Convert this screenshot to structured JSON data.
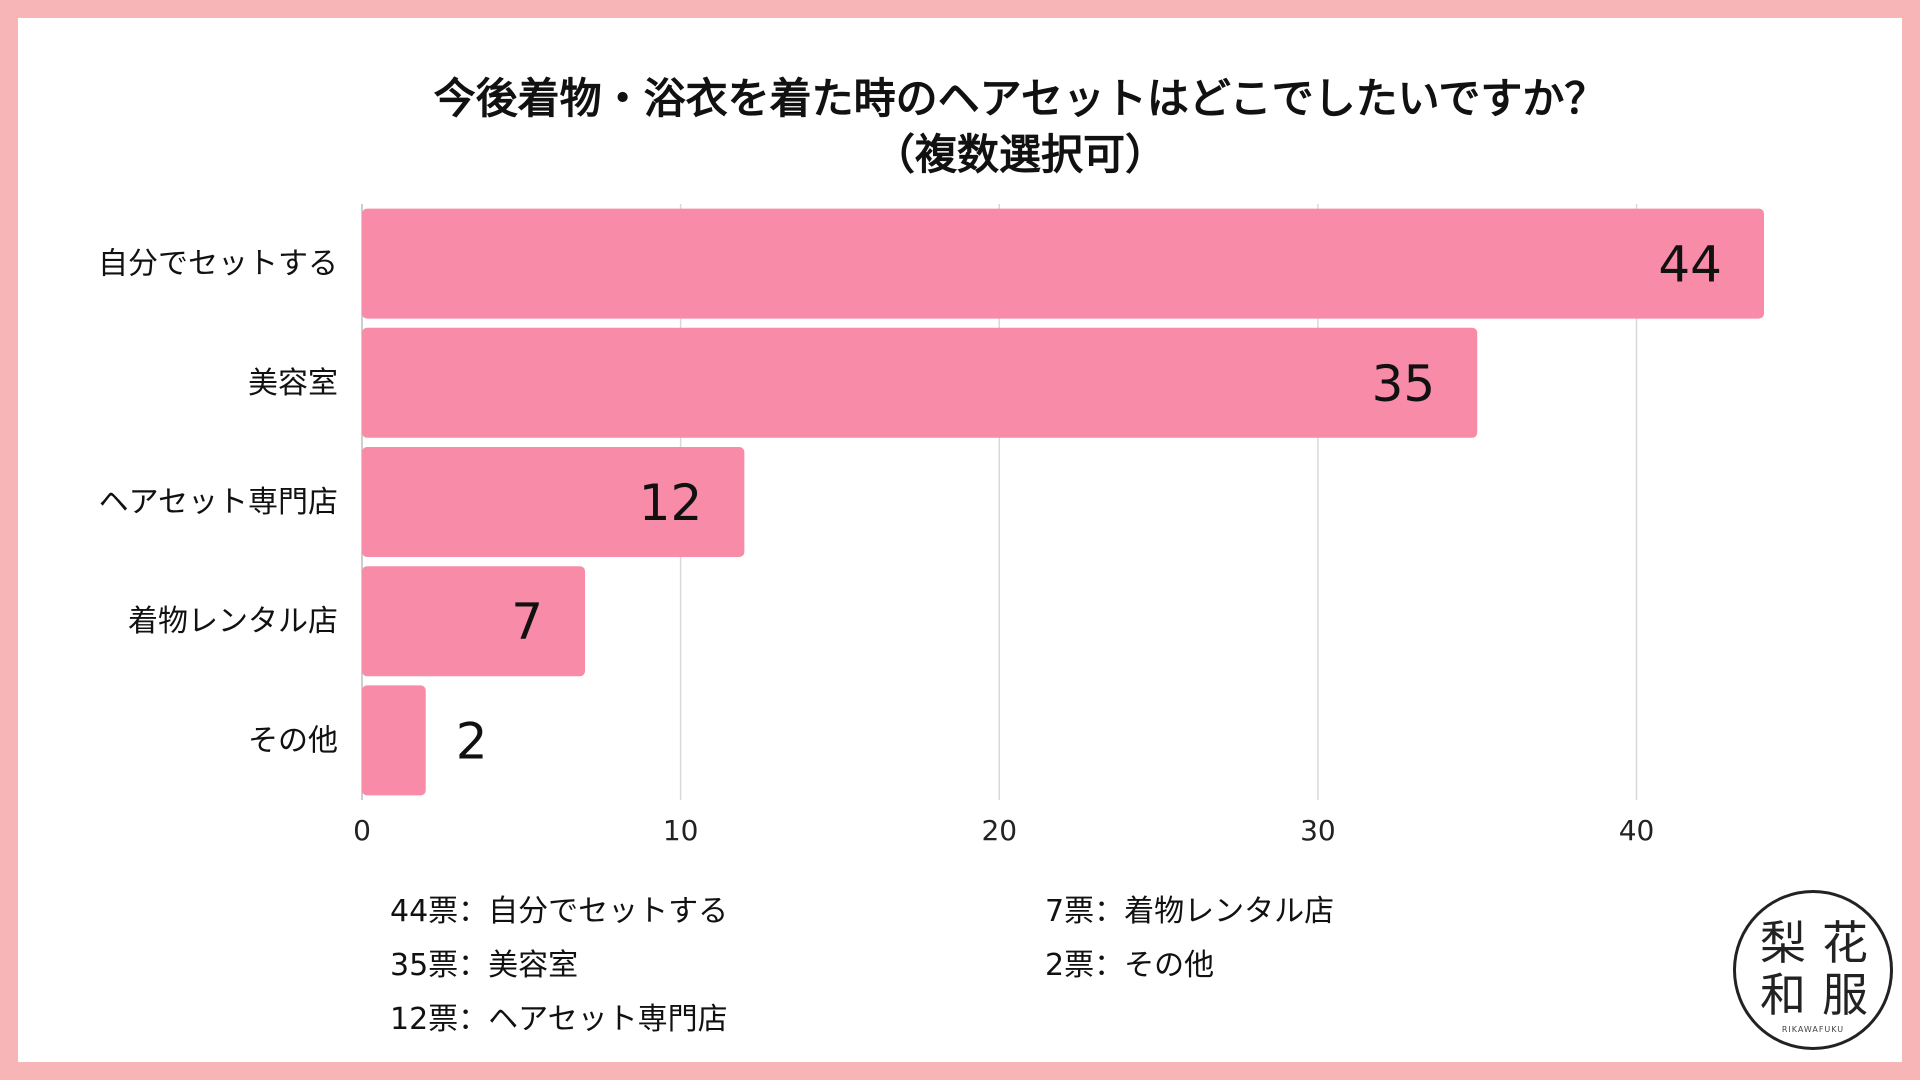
{
  "chart_data": {
    "type": "bar",
    "orientation": "horizontal",
    "title_line1": "今後着物・浴衣を着た時のヘアセットはどこでしたいですか？",
    "title_line2": "（複数選択可）",
    "categories": [
      "自分でセットする",
      "美容室",
      "ヘアセット専門店",
      "着物レンタル店",
      "その他"
    ],
    "values": [
      44,
      35,
      12,
      7,
      2
    ],
    "value_labels": [
      "44",
      "35",
      "12",
      "7",
      "2"
    ],
    "xlim": [
      0,
      44
    ],
    "xticks": [
      "0",
      "10",
      "20",
      "30",
      "40"
    ],
    "xtick_values": [
      0,
      10,
      20,
      30,
      40
    ],
    "grid": true,
    "bar_color": "#f78ba8",
    "grid_color": "#d9d9d9"
  },
  "legend": {
    "left": [
      "44票：自分でセットする",
      "35票：美容室",
      "12票：ヘアセット専門店"
    ],
    "right": [
      "7票：着物レンタル店",
      "2票：その他"
    ]
  },
  "logo": {
    "chars": [
      "梨",
      "花",
      "和",
      "服"
    ],
    "sub": "RIKAWAFUKU"
  },
  "colors": {
    "frame": "#f7b5b7",
    "bar": "#f78ba8"
  }
}
